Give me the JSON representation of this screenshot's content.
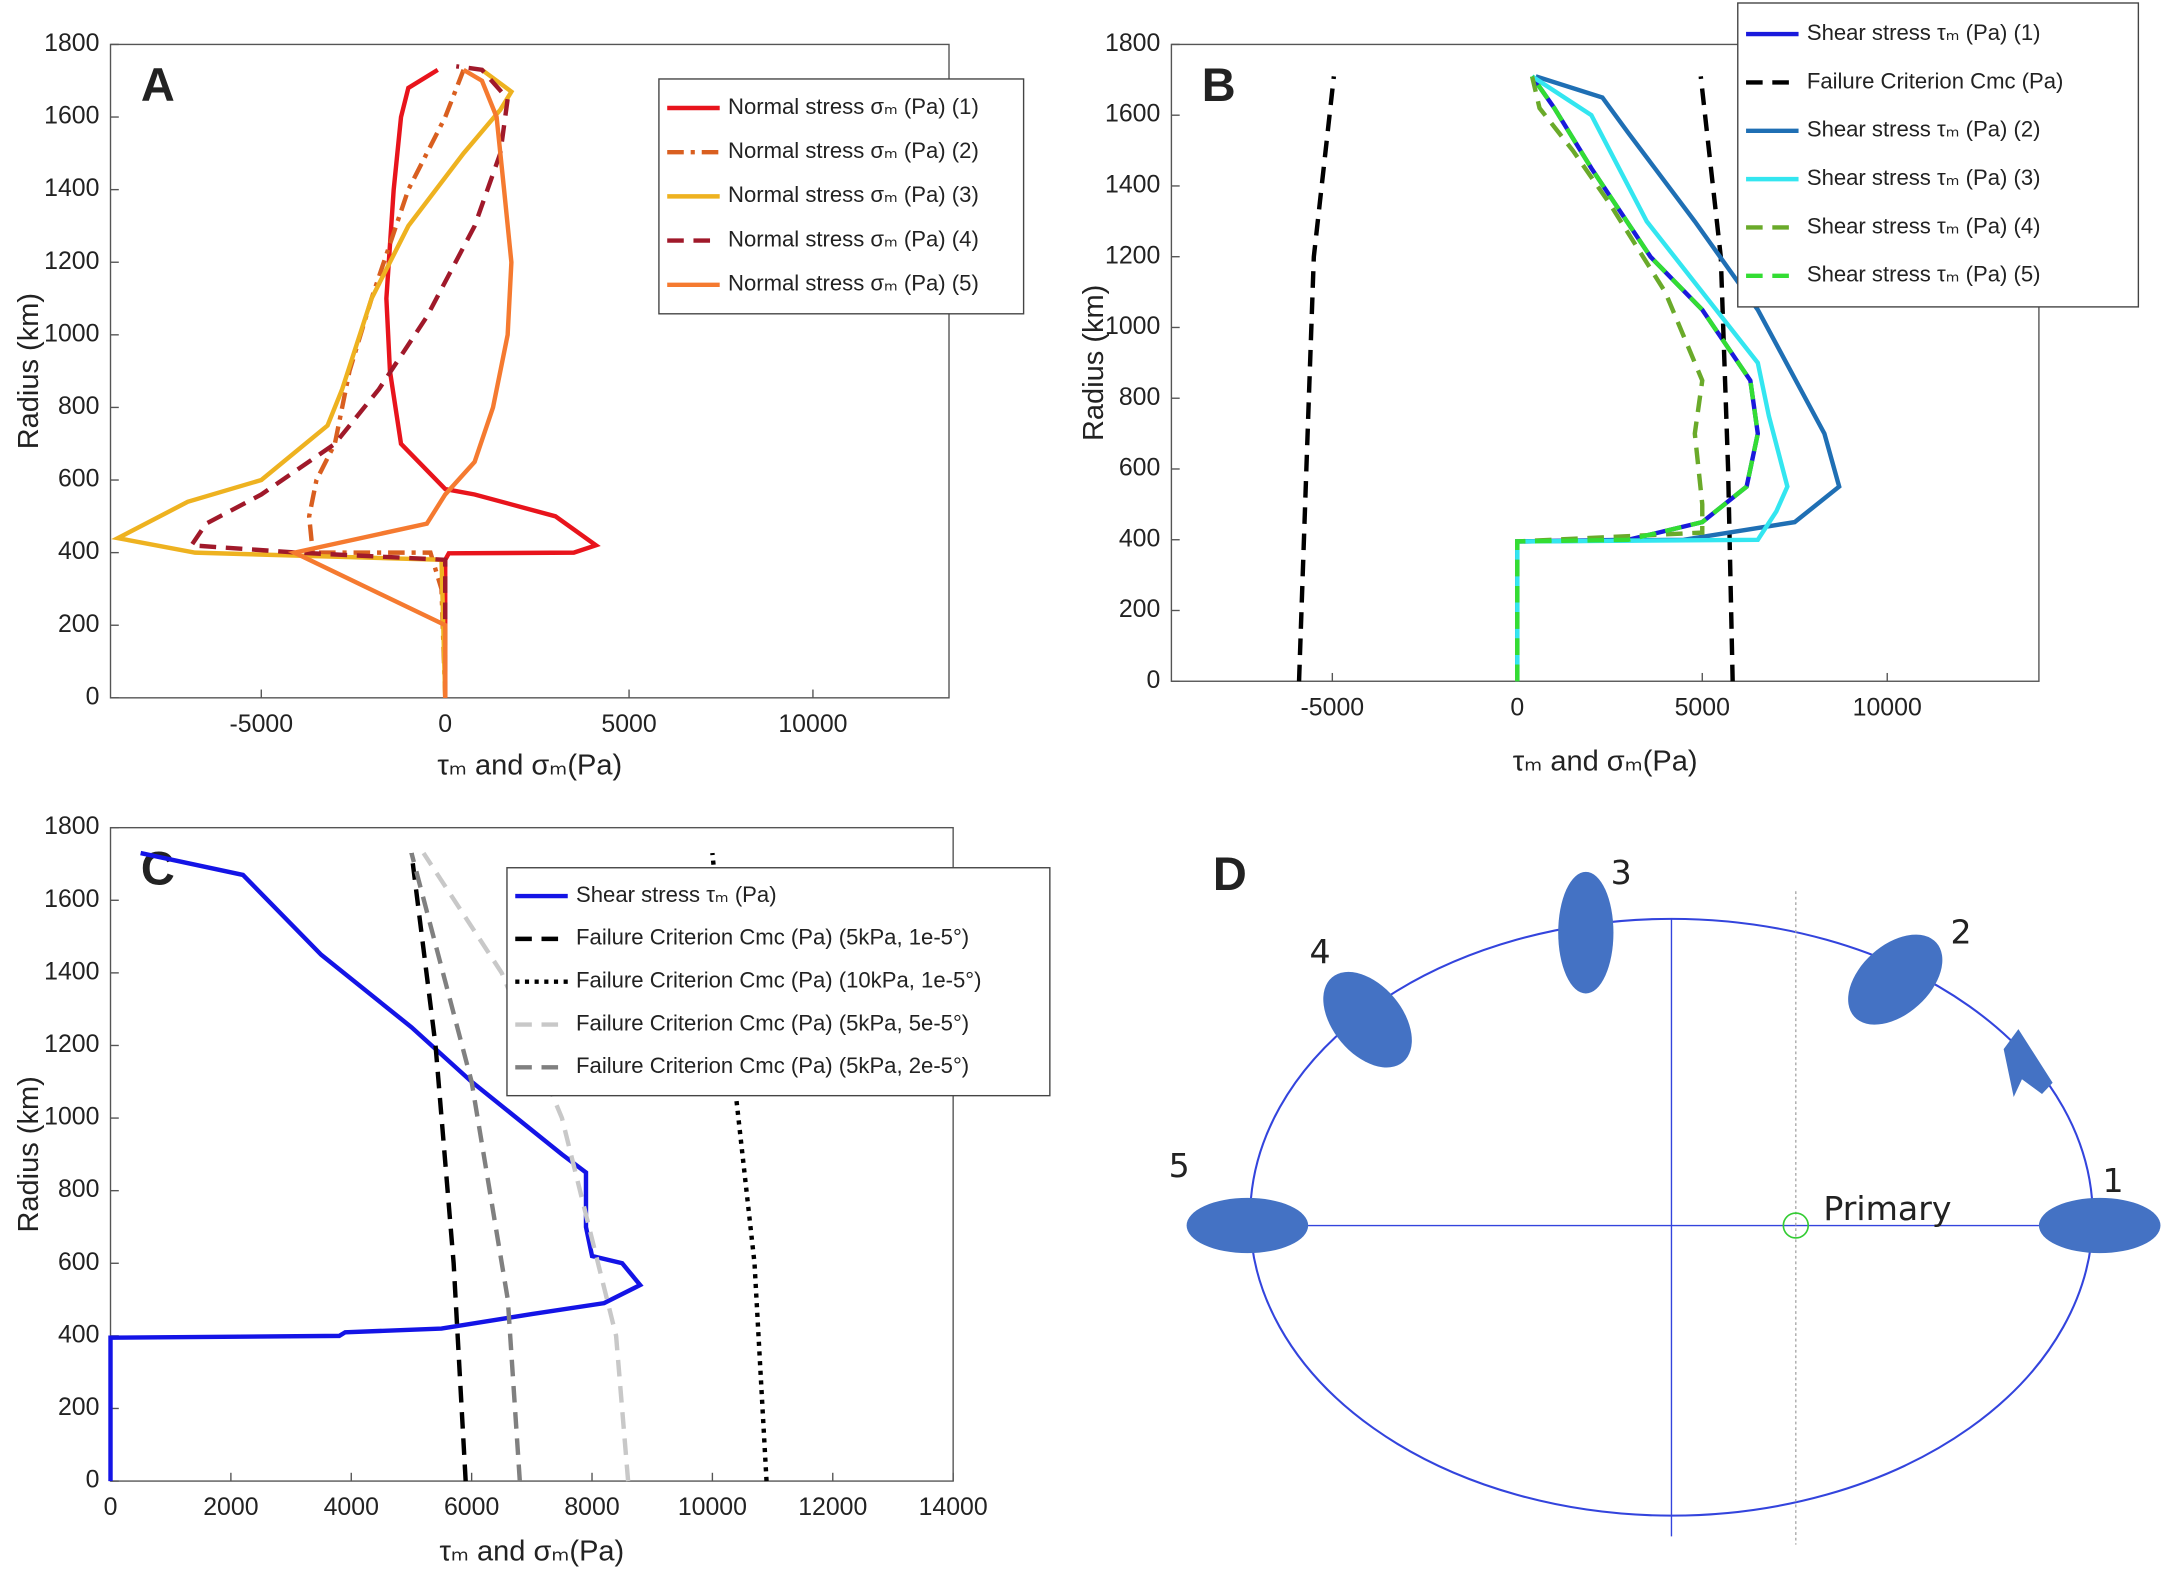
{
  "chart_data": [
    {
      "type": "line",
      "panel_label": "A",
      "xlabel": "τₘ and σₘ(Pa)",
      "ylabel": "Radius (km)",
      "xlim": [
        -9100,
        13700
      ],
      "ylim": [
        0,
        1800
      ],
      "xticks": [
        -5000,
        0,
        5000,
        10000
      ],
      "yticks": [
        0,
        200,
        400,
        600,
        800,
        1000,
        1200,
        1400,
        1600,
        1800
      ],
      "series": [
        {
          "name": "Normal stress σₘ (Pa) (1)",
          "color": "#e8141c",
          "dash": "solid",
          "x": [
            0,
            0,
            100,
            3500,
            4100,
            3000,
            800,
            0,
            -1200,
            -1500,
            -1600,
            -1400,
            -1200,
            -1000,
            -200
          ],
          "values": [
            0,
            380,
            398,
            400,
            420,
            500,
            560,
            575,
            700,
            900,
            1100,
            1400,
            1600,
            1680,
            1730
          ]
        },
        {
          "name": "Normal stress σₘ (Pa) (2)",
          "color": "#d95f20",
          "dash": "dashdot",
          "x": [
            0,
            -100,
            -400,
            -3600,
            -3700,
            -3500,
            -3000,
            -2600,
            -2000,
            -1000,
            0,
            500
          ],
          "values": [
            0,
            300,
            400,
            400,
            500,
            600,
            700,
            900,
            1100,
            1400,
            1600,
            1730
          ]
        },
        {
          "name": "Normal stress σₘ (Pa) (3)",
          "color": "#eeb220",
          "dash": "solid",
          "x": [
            0,
            -100,
            -6800,
            -8900,
            -7000,
            -5000,
            -3200,
            -2800,
            -2000,
            -1000,
            500,
            1500,
            1800,
            1000
          ],
          "values": [
            0,
            380,
            400,
            440,
            540,
            600,
            750,
            850,
            1100,
            1300,
            1500,
            1620,
            1670,
            1730
          ]
        },
        {
          "name": "Normal stress σₘ (Pa) (4)",
          "color": "#a0192a",
          "dash": "dashed",
          "x": [
            0,
            0,
            -4000,
            -6900,
            -6500,
            -5000,
            -3000,
            -1800,
            -500,
            800,
            1500,
            1700,
            1000,
            300
          ],
          "values": [
            0,
            380,
            400,
            420,
            480,
            560,
            700,
            850,
            1050,
            1300,
            1500,
            1650,
            1730,
            1740
          ]
        },
        {
          "name": "Normal stress σₘ (Pa) (5)",
          "color": "#f57a30",
          "dash": "solid",
          "x": [
            0,
            0,
            -4100,
            -500,
            0,
            800,
            1300,
            1700,
            1800,
            1600,
            1400,
            1000,
            500
          ],
          "values": [
            0,
            200,
            400,
            480,
            560,
            650,
            800,
            1000,
            1200,
            1400,
            1600,
            1700,
            1730
          ]
        }
      ]
    },
    {
      "type": "line",
      "panel_label": "B",
      "xlabel": "τₘ and σₘ(Pa)",
      "ylabel": "Radius (km)",
      "xlim": [
        -9350,
        14100
      ],
      "ylim": [
        0,
        1800
      ],
      "xticks": [
        -5000,
        0,
        5000,
        10000
      ],
      "yticks": [
        0,
        200,
        400,
        600,
        800,
        1000,
        1200,
        1400,
        1600,
        1800
      ],
      "series": [
        {
          "name": "Shear stress τₘ (Pa) (1)",
          "color": "#1a1adc",
          "dash": "solid",
          "x": [
            0,
            0,
            3000,
            5000,
            6200,
            6500,
            6300,
            5000,
            3600,
            2000,
            1000,
            400
          ],
          "values": [
            0,
            395,
            400,
            450,
            550,
            700,
            850,
            1050,
            1200,
            1450,
            1620,
            1710
          ]
        },
        {
          "name": "Failure Criterion Cmc (Pa)",
          "color": "#000000",
          "dash": "dashed",
          "x": [
            5820,
            5700,
            5500,
            4960,
            null,
            -5900,
            -5700,
            -5500,
            -4960
          ],
          "values": [
            0,
            600,
            1200,
            1710,
            null,
            0,
            600,
            1200,
            1710
          ]
        },
        {
          "name": "Shear stress τₘ (Pa) (2)",
          "color": "#1f6fb4",
          "dash": "solid",
          "x": [
            0,
            0,
            4500,
            7500,
            8700,
            8300,
            6500,
            4800,
            3000,
            2300,
            500
          ],
          "values": [
            0,
            395,
            400,
            450,
            550,
            700,
            1050,
            1300,
            1550,
            1650,
            1710
          ]
        },
        {
          "name": "Shear stress τₘ (Pa) (3)",
          "color": "#33e6f0",
          "dash": "solid",
          "x": [
            0,
            0,
            6500,
            7000,
            7300,
            6800,
            6500,
            5000,
            3500,
            2000,
            400
          ],
          "values": [
            0,
            395,
            400,
            480,
            550,
            750,
            900,
            1100,
            1300,
            1600,
            1710
          ]
        },
        {
          "name": "Shear stress τₘ (Pa) (4)",
          "color": "#6aaa2a",
          "dash": "dashed",
          "x": [
            0,
            0,
            5000,
            5000,
            4800,
            5000,
            4000,
            2500,
            1500,
            600,
            400
          ],
          "values": [
            0,
            395,
            420,
            500,
            700,
            850,
            1100,
            1350,
            1500,
            1620,
            1710
          ]
        },
        {
          "name": "Shear stress τₘ (Pa) (5)",
          "color": "#33dd33",
          "dash": "dashed",
          "x": [
            0,
            0,
            3000,
            5000,
            6200,
            6500,
            6300,
            5000,
            3600,
            2000,
            1000,
            400
          ],
          "values": [
            0,
            395,
            400,
            450,
            550,
            700,
            850,
            1050,
            1200,
            1450,
            1620,
            1710
          ]
        }
      ]
    },
    {
      "type": "line",
      "panel_label": "C",
      "xlabel": "τₘ and σₘ(Pa)",
      "ylabel": "Radius (km)",
      "xlim": [
        0,
        14000
      ],
      "ylim": [
        0,
        1800
      ],
      "xticks": [
        0,
        2000,
        4000,
        6000,
        8000,
        10000,
        12000,
        14000
      ],
      "yticks": [
        0,
        200,
        400,
        600,
        800,
        1000,
        1200,
        1400,
        1600,
        1800
      ],
      "series": [
        {
          "name": "Shear stress τₘ (Pa)",
          "color": "#1414e6",
          "dash": "solid",
          "x": [
            0,
            0,
            3800,
            3900,
            5500,
            7000,
            8200,
            8800,
            8500,
            8000,
            7900,
            7900,
            7500,
            6000,
            5000,
            3500,
            2200,
            500
          ],
          "values": [
            0,
            395,
            400,
            410,
            420,
            460,
            490,
            540,
            600,
            620,
            700,
            850,
            900,
            1100,
            1250,
            1450,
            1670,
            1730
          ]
        },
        {
          "name": "Failure Criterion Cmc (Pa) (5kPa, 1e-5°)",
          "color": "#000000",
          "dash": "dashed",
          "x": [
            5900,
            5700,
            5400,
            5000
          ],
          "values": [
            0,
            600,
            1200,
            1730
          ]
        },
        {
          "name": "Failure Criterion Cmc (Pa) (10kPa, 1e-5°)",
          "color": "#000000",
          "dash": "dotted",
          "x": [
            10900,
            10700,
            10400,
            10000
          ],
          "values": [
            0,
            600,
            1050,
            1730
          ]
        },
        {
          "name": "Failure Criterion Cmc (Pa) (5kPa, 5e-5°)",
          "color": "#c8c8c8",
          "dash": "dashed",
          "x": [
            8600,
            8400,
            7500,
            6500,
            5200
          ],
          "values": [
            0,
            400,
            1000,
            1400,
            1730
          ]
        },
        {
          "name": "Failure Criterion Cmc (Pa) (5kPa, 2e-5°)",
          "color": "#808080",
          "dash": "dashed",
          "x": [
            6800,
            6600,
            6000,
            5000
          ],
          "values": [
            0,
            500,
            1100,
            1730
          ]
        }
      ]
    }
  ],
  "diagram": {
    "panel_label": "D",
    "positions": [
      "1",
      "2",
      "3",
      "4",
      "5"
    ],
    "center_label": "Primary"
  }
}
